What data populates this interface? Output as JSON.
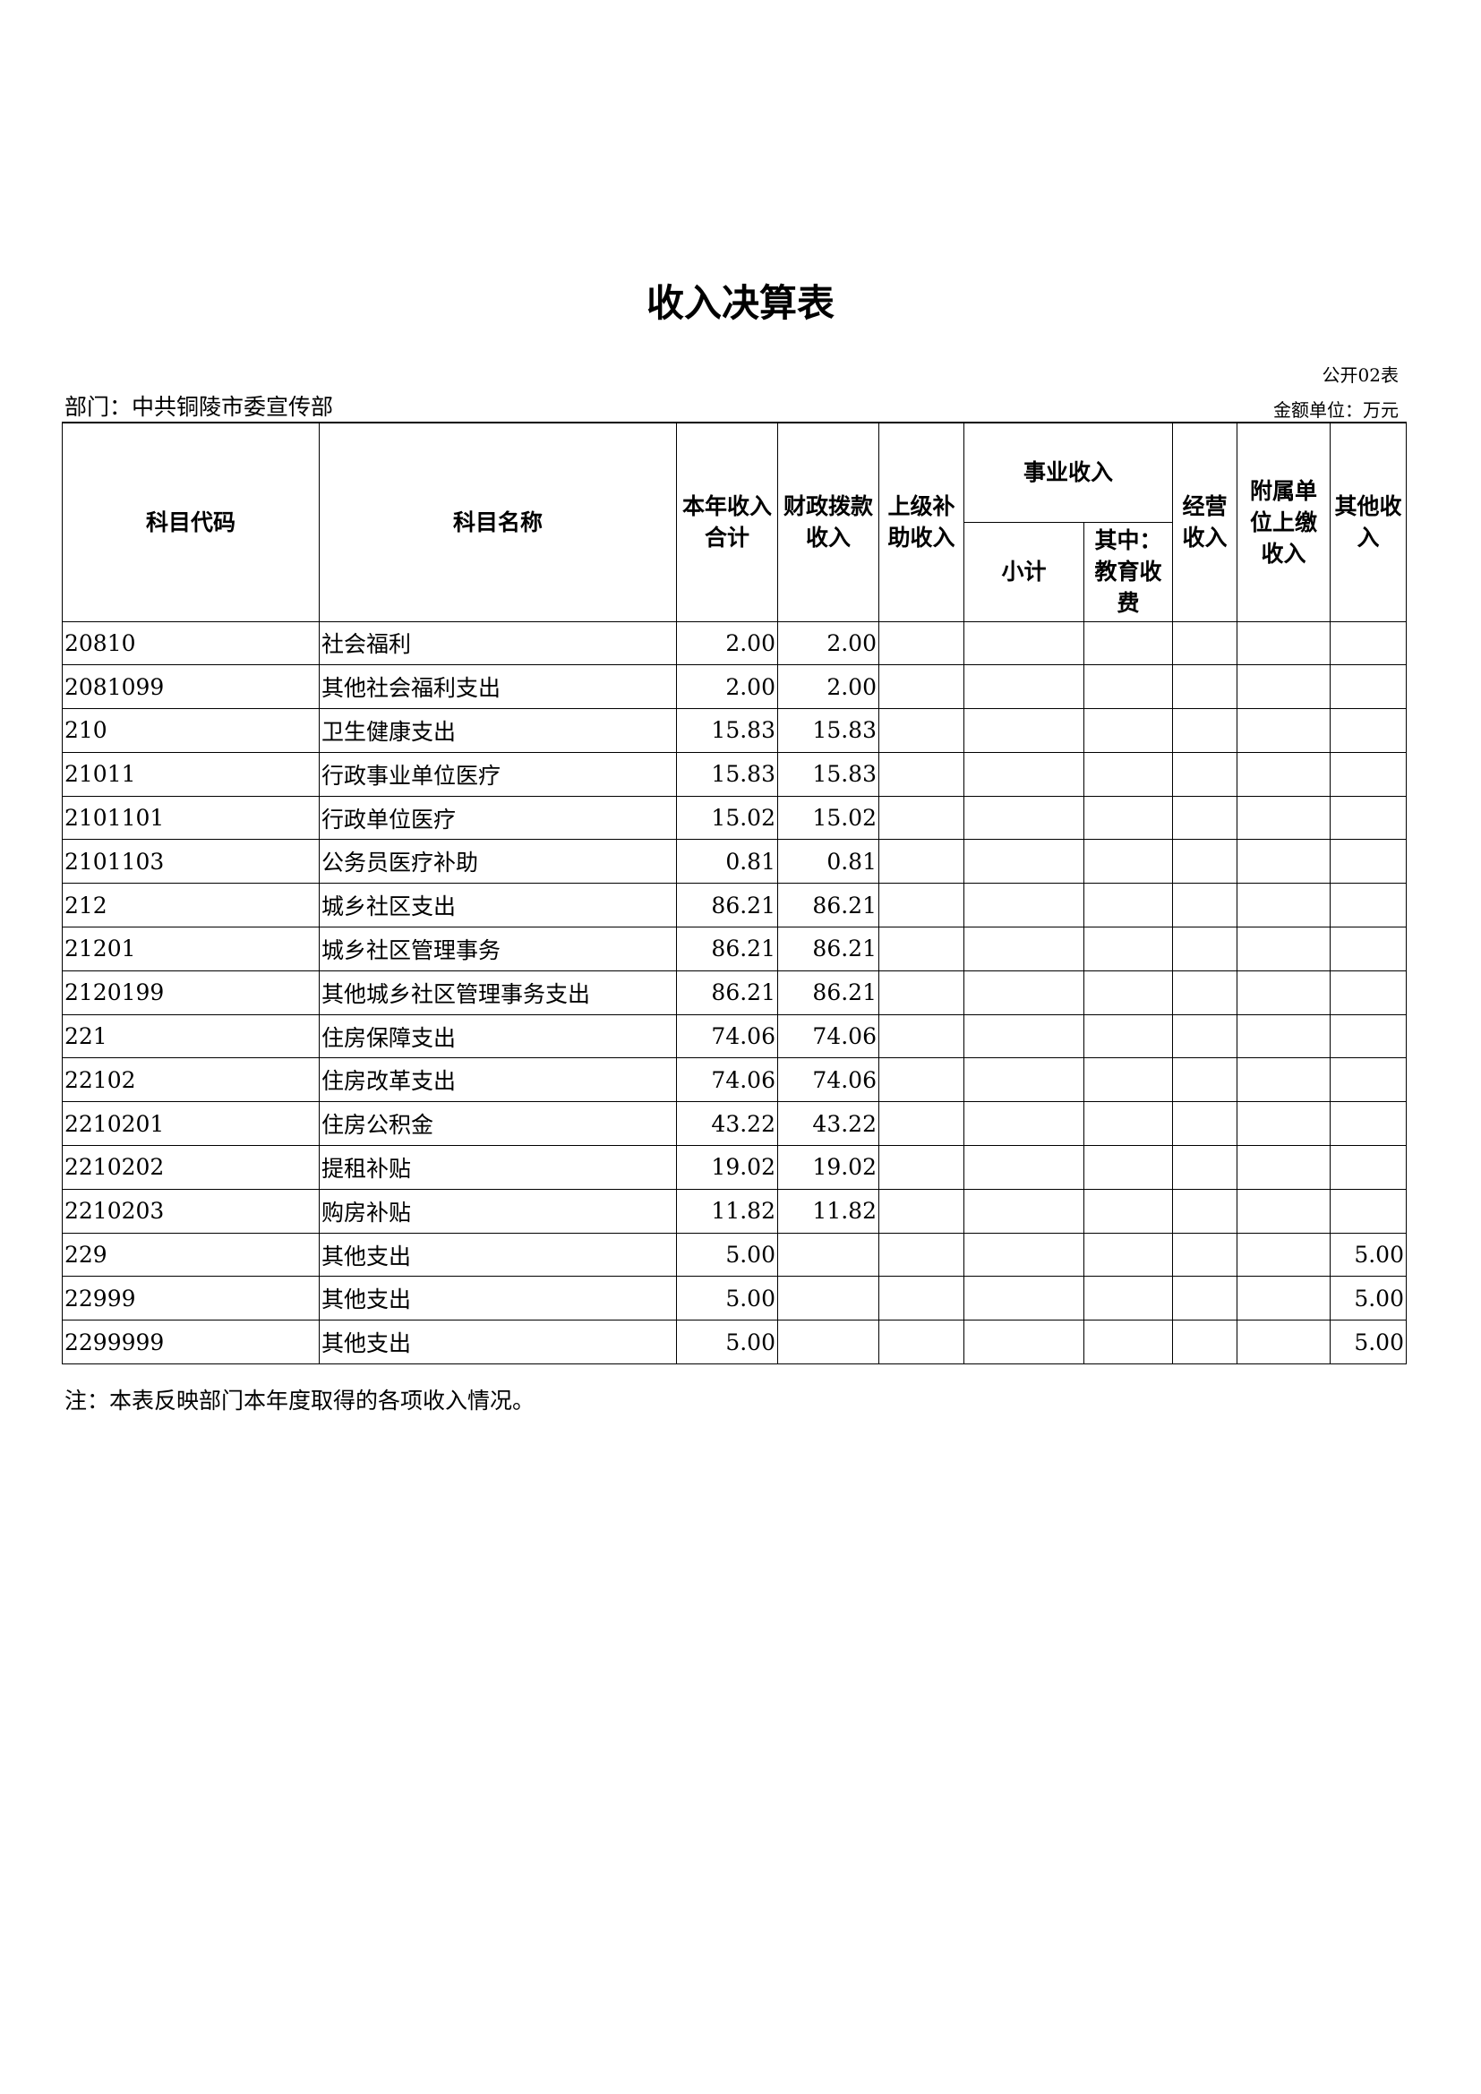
{
  "title": "收入决算表",
  "table_no": "公开02表",
  "department": "部门：中共铜陵市委宣传部",
  "unit": "金额单位：万元",
  "headers": {
    "code": "科目代码",
    "name": "科目名称",
    "total": "本年收入合计",
    "fiscal": "财政拨款收入",
    "superior": "上级补助收入",
    "business": "事业收入",
    "subtotal": "小计",
    "education": "其中：教育收费",
    "operating": "经营收入",
    "affiliated": "附属单位上缴收入",
    "other": "其他收入"
  },
  "rows": [
    {
      "code": "20810",
      "name": "社会福利",
      "total": "2.00",
      "fiscal": "2.00",
      "other": ""
    },
    {
      "code": "2081099",
      "name": "其他社会福利支出",
      "total": "2.00",
      "fiscal": "2.00",
      "other": ""
    },
    {
      "code": "210",
      "name": "卫生健康支出",
      "total": "15.83",
      "fiscal": "15.83",
      "other": ""
    },
    {
      "code": "21011",
      "name": "行政事业单位医疗",
      "total": "15.83",
      "fiscal": "15.83",
      "other": ""
    },
    {
      "code": "2101101",
      "name": "行政单位医疗",
      "total": "15.02",
      "fiscal": "15.02",
      "other": ""
    },
    {
      "code": "2101103",
      "name": "公务员医疗补助",
      "total": "0.81",
      "fiscal": "0.81",
      "other": ""
    },
    {
      "code": "212",
      "name": "城乡社区支出",
      "total": "86.21",
      "fiscal": "86.21",
      "other": ""
    },
    {
      "code": "21201",
      "name": "城乡社区管理事务",
      "total": "86.21",
      "fiscal": "86.21",
      "other": ""
    },
    {
      "code": "2120199",
      "name": "其他城乡社区管理事务支出",
      "total": "86.21",
      "fiscal": "86.21",
      "other": ""
    },
    {
      "code": "221",
      "name": "住房保障支出",
      "total": "74.06",
      "fiscal": "74.06",
      "other": ""
    },
    {
      "code": "22102",
      "name": "住房改革支出",
      "total": "74.06",
      "fiscal": "74.06",
      "other": ""
    },
    {
      "code": "2210201",
      "name": "住房公积金",
      "total": "43.22",
      "fiscal": "43.22",
      "other": ""
    },
    {
      "code": "2210202",
      "name": "提租补贴",
      "total": "19.02",
      "fiscal": "19.02",
      "other": ""
    },
    {
      "code": "2210203",
      "name": "购房补贴",
      "total": "11.82",
      "fiscal": "11.82",
      "other": ""
    },
    {
      "code": "229",
      "name": "其他支出",
      "total": "5.00",
      "fiscal": "",
      "other": "5.00"
    },
    {
      "code": "22999",
      "name": "其他支出",
      "total": "5.00",
      "fiscal": "",
      "other": "5.00"
    },
    {
      "code": "2299999",
      "name": "其他支出",
      "total": "5.00",
      "fiscal": "",
      "other": "5.00"
    }
  ],
  "note": "注：本表反映部门本年度取得的各项收入情况。"
}
